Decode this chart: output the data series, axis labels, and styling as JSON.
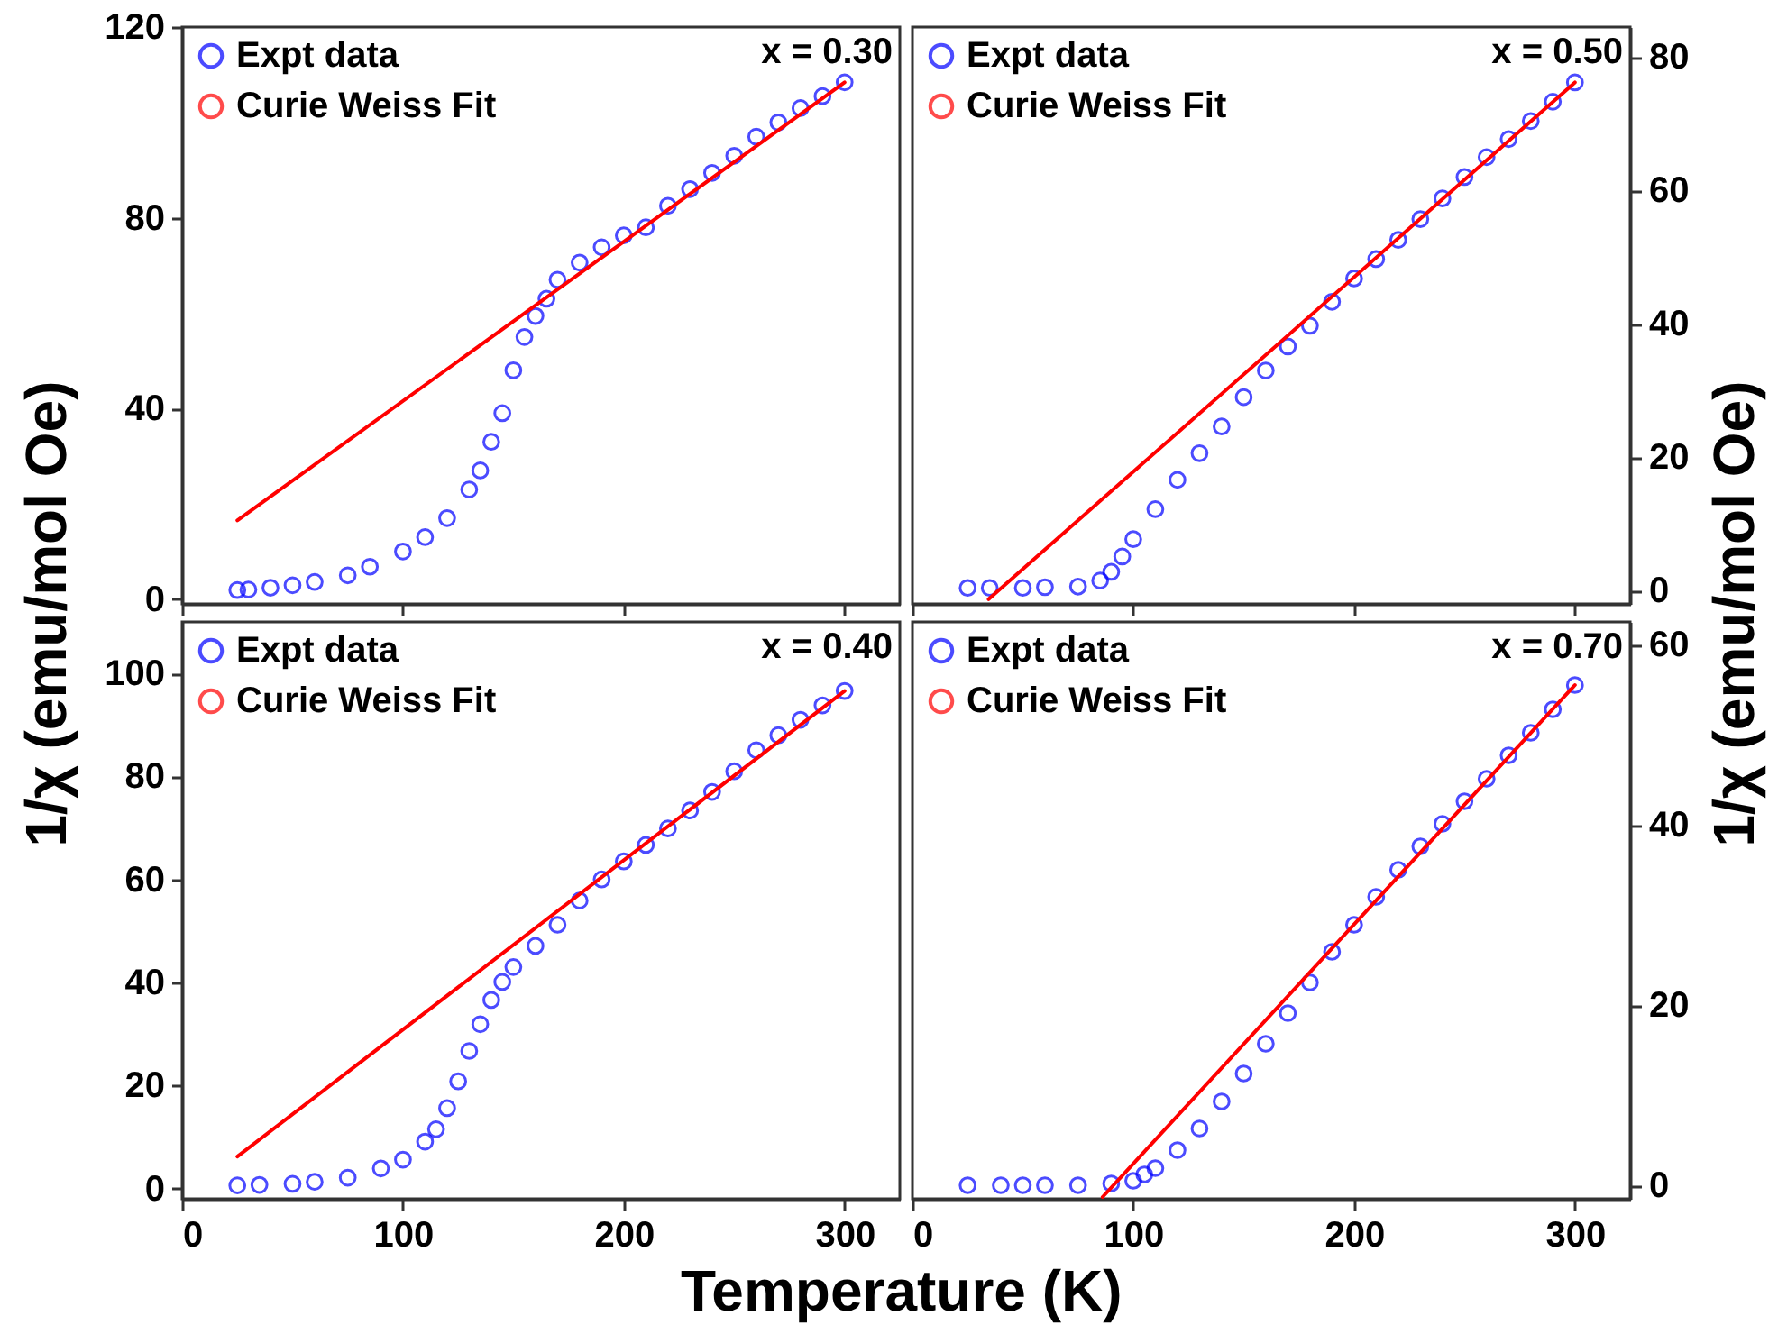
{
  "chart_data": [
    {
      "type": "scatter",
      "ylabel": "1/χ (emu/mol Oe)",
      "annotations": [
        "x = 0.30"
      ],
      "xlim": [
        0,
        325
      ],
      "xticks": [
        0,
        100,
        200,
        300
      ],
      "ylim": [
        -1,
        120
      ],
      "yticks": [
        0,
        40,
        80,
        120
      ],
      "tick_labels": "y",
      "legend": "top left",
      "marker": "circle",
      "line_style": "solid",
      "series": [
        {
          "name": "Expt data",
          "type": "scatter",
          "color": "#0000ff",
          "x": [
            25,
            30,
            40,
            50,
            60,
            75,
            85,
            100,
            110,
            120,
            130,
            135,
            140,
            145,
            150,
            155,
            160,
            165,
            170,
            180,
            190,
            200,
            210,
            220,
            230,
            240,
            250,
            260,
            270,
            280,
            290,
            300
          ],
          "values": [
            1.9,
            2,
            2.4,
            2.9,
            3.6,
            5,
            6.8,
            10,
            13,
            17,
            23,
            27,
            33,
            39,
            48,
            55,
            59.4,
            63,
            67,
            70.6,
            73.8,
            76.3,
            78,
            82.5,
            86,
            89.4,
            93,
            97,
            100,
            103,
            105.5,
            108.4
          ]
        },
        {
          "name": "Curie Weiss Fit",
          "type": "line",
          "marker": "none",
          "color": "#ff0000",
          "x": [
            25,
            300
          ],
          "values": [
            16.5,
            108.4
          ]
        }
      ]
    },
    {
      "type": "scatter",
      "y2label": "1/χ (emu/mol Oe)",
      "annotations": [
        "x = 0.50"
      ],
      "xlim": [
        0,
        325
      ],
      "xticks": [
        0,
        100,
        200,
        300
      ],
      "y2lim": [
        -2,
        84.5
      ],
      "y2ticks": [
        0,
        20,
        40,
        60,
        80
      ],
      "tick_labels": "y",
      "legend": "top left",
      "marker": "circle",
      "line_style": "solid",
      "series": [
        {
          "name": "Expt data",
          "type": "scatter",
          "axis": "y2",
          "color": "#0000ff",
          "x": [
            25,
            35,
            50,
            60,
            75,
            85,
            90,
            95,
            100,
            110,
            120,
            130,
            140,
            150,
            160,
            170,
            180,
            190,
            200,
            210,
            220,
            230,
            240,
            250,
            260,
            270,
            280,
            290,
            300
          ],
          "values": [
            0.4,
            0.4,
            0.4,
            0.5,
            0.6,
            1.5,
            2.8,
            5.1,
            7.7,
            12.2,
            16.6,
            20.6,
            24.6,
            29,
            33,
            36.6,
            39.7,
            43.3,
            46.8,
            49.7,
            52.6,
            55.7,
            58.8,
            62,
            65,
            67.7,
            70.4,
            73.3,
            76.2
          ]
        },
        {
          "name": "Curie Weiss Fit",
          "type": "line",
          "marker": "none",
          "axis": "y2",
          "color": "#ff0000",
          "x": [
            34.5,
            300
          ],
          "values": [
            -1.3,
            76.2
          ]
        }
      ]
    },
    {
      "type": "scatter",
      "xlabel": "Temperature (K)",
      "annotations": [
        "x = 0.40"
      ],
      "xlim": [
        0,
        325
      ],
      "xticks": [
        0,
        100,
        200,
        300
      ],
      "ylim": [
        -2,
        110
      ],
      "yticks": [
        0,
        20,
        40,
        60,
        80,
        100
      ],
      "legend": "top left",
      "marker": "circle",
      "line_style": "solid",
      "series": [
        {
          "name": "Expt data",
          "type": "scatter",
          "color": "#0000ff",
          "x": [
            25,
            35,
            50,
            60,
            75,
            90,
            100,
            110,
            115,
            120,
            125,
            130,
            135,
            140,
            145,
            150,
            160,
            170,
            180,
            190,
            200,
            210,
            220,
            230,
            240,
            250,
            260,
            270,
            280,
            290,
            300
          ],
          "values": [
            0.6,
            0.7,
            0.9,
            1.3,
            2.1,
            3.9,
            5.6,
            9.1,
            11.5,
            15.6,
            20.8,
            26.7,
            31.9,
            36.6,
            40.1,
            43,
            47.1,
            51.2,
            55.9,
            60,
            63.5,
            66.7,
            69.9,
            73.4,
            77,
            81,
            85.1,
            88,
            91,
            93.8,
            96.6
          ]
        },
        {
          "name": "Curie Weiss Fit",
          "type": "line",
          "marker": "none",
          "color": "#ff0000",
          "x": [
            25,
            300
          ],
          "values": [
            6.2,
            96.6
          ]
        }
      ]
    },
    {
      "type": "scatter",
      "annotations": [
        "x = 0.70"
      ],
      "xlim": [
        0,
        325
      ],
      "xticks": [
        0,
        100,
        200,
        300
      ],
      "y2lim": [
        -1.5,
        62.5
      ],
      "y2ticks": [
        0,
        20,
        40,
        60
      ],
      "legend": "top left",
      "marker": "circle",
      "line_style": "solid",
      "series": [
        {
          "name": "Expt data",
          "type": "scatter",
          "axis": "y2",
          "color": "#0000ff",
          "x": [
            25,
            40,
            50,
            60,
            75,
            90,
            100,
            105,
            110,
            120,
            130,
            140,
            150,
            160,
            170,
            180,
            190,
            200,
            210,
            220,
            230,
            240,
            250,
            260,
            270,
            280,
            290,
            300
          ],
          "values": [
            0,
            0,
            0,
            0,
            0,
            0.2,
            0.5,
            1.2,
            1.9,
            3.9,
            6.3,
            9.3,
            12.4,
            15.7,
            19.1,
            22.5,
            25.9,
            28.9,
            32,
            35,
            37.6,
            40.1,
            42.6,
            45.1,
            47.7,
            50.2,
            52.8,
            55.5
          ]
        },
        {
          "name": "Curie Weiss Fit",
          "type": "line",
          "marker": "none",
          "axis": "y2",
          "color": "#ff0000",
          "x": [
            86.1,
            300
          ],
          "values": [
            -1.3,
            55.5
          ]
        }
      ]
    }
  ]
}
